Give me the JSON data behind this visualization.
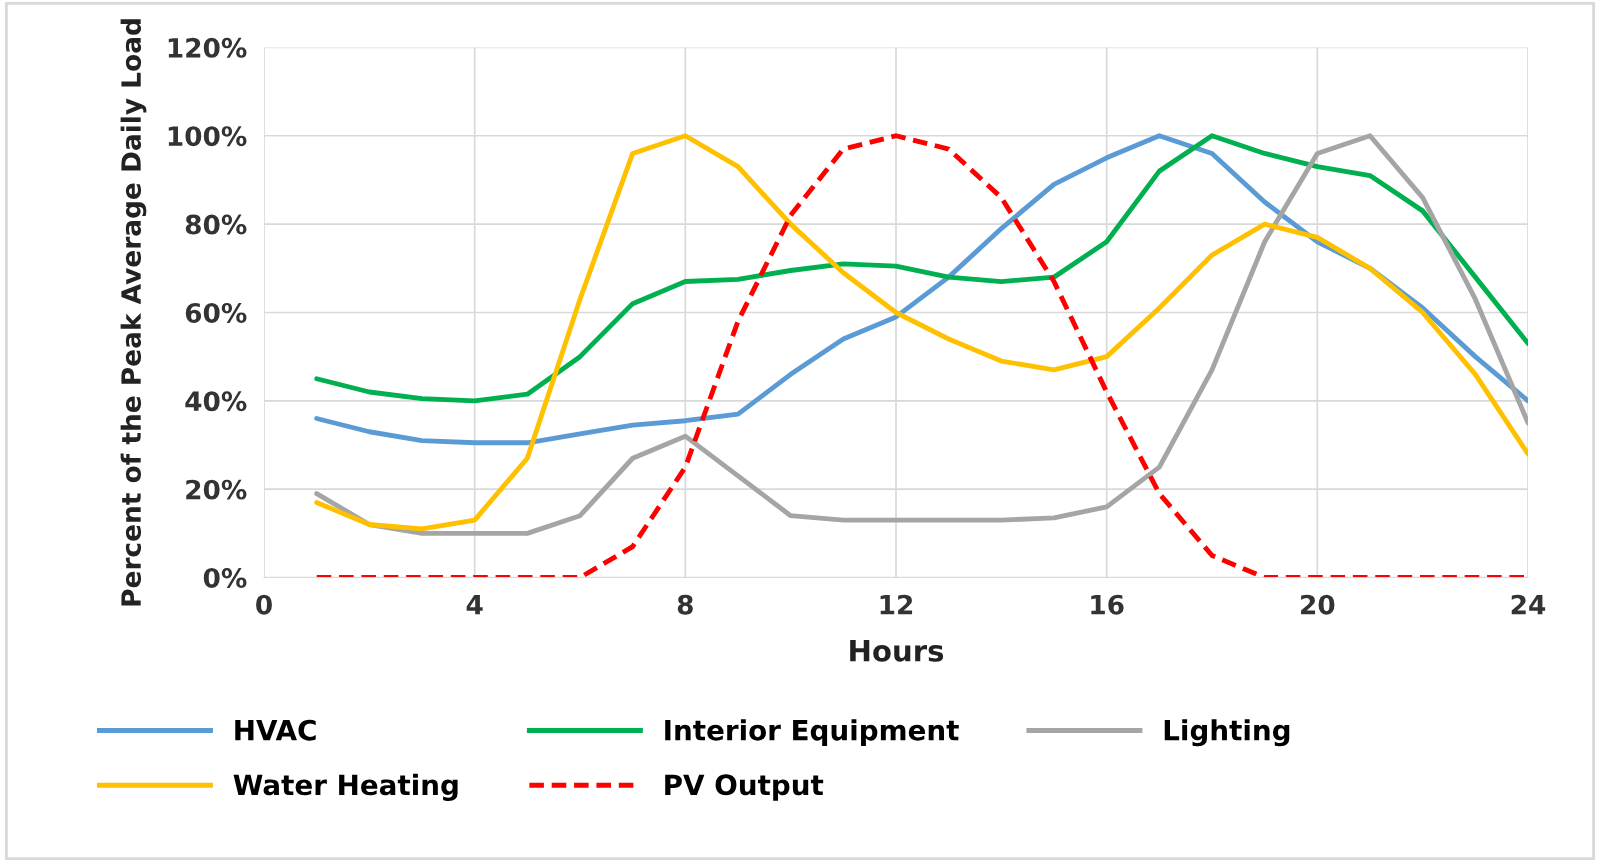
{
  "chart_data": {
    "type": "line",
    "xlabel": "Hours",
    "ylabel": "Percent of the Peak Average Daily Load",
    "x": [
      1,
      2,
      3,
      4,
      5,
      6,
      7,
      8,
      9,
      10,
      11,
      12,
      13,
      14,
      15,
      16,
      17,
      18,
      19,
      20,
      21,
      22,
      23,
      24
    ],
    "series": [
      {
        "name": "HVAC",
        "color": "#5b9bd5",
        "values": [
          36,
          33,
          31,
          30.5,
          30.5,
          32.5,
          34.5,
          35.5,
          37,
          46,
          54,
          59,
          68,
          79,
          89,
          95,
          100,
          96,
          85,
          76,
          70,
          61,
          50,
          40
        ]
      },
      {
        "name": "Interior Equipment",
        "color": "#00b050",
        "values": [
          45,
          42,
          40.5,
          40,
          41.5,
          50,
          62,
          67,
          67.5,
          69.5,
          71,
          70.5,
          68,
          67,
          68,
          76,
          92,
          100,
          96,
          93,
          91,
          83,
          68,
          53
        ]
      },
      {
        "name": "Lighting",
        "color": "#a5a5a5",
        "values": [
          19,
          12,
          10,
          10,
          10,
          14,
          27,
          32,
          23,
          14,
          13,
          13,
          13,
          13,
          13.5,
          16,
          25,
          47,
          76,
          96,
          100,
          86,
          63,
          35
        ]
      },
      {
        "name": "Water Heating",
        "color": "#ffc000",
        "values": [
          17,
          12,
          11,
          13,
          27,
          63,
          96,
          100,
          93,
          80,
          69,
          60,
          54,
          49,
          47,
          50,
          61,
          73,
          80,
          77,
          70,
          60,
          46,
          28
        ]
      },
      {
        "name": "PV Output",
        "color": "#ff0000",
        "line_style": "dashed",
        "values": [
          0,
          0,
          0,
          0,
          0,
          0,
          7,
          25,
          58,
          82,
          97,
          100,
          97,
          86,
          67,
          42,
          19,
          5,
          0,
          0,
          0,
          0,
          0,
          0
        ]
      }
    ],
    "xlim": [
      0,
      24
    ],
    "xticks": [
      0,
      4,
      8,
      12,
      16,
      20,
      24
    ],
    "ylim": [
      0,
      120
    ],
    "yticks": [
      {
        "value": 0,
        "label": "0%"
      },
      {
        "value": 20,
        "label": "20%"
      },
      {
        "value": 40,
        "label": "40%"
      },
      {
        "value": 60,
        "label": "60%"
      },
      {
        "value": 80,
        "label": "80%"
      },
      {
        "value": 100,
        "label": "100%"
      },
      {
        "value": 120,
        "label": "120%"
      }
    ],
    "grid": true,
    "legend": "bottom",
    "line_style": "solid",
    "marker": "none"
  }
}
